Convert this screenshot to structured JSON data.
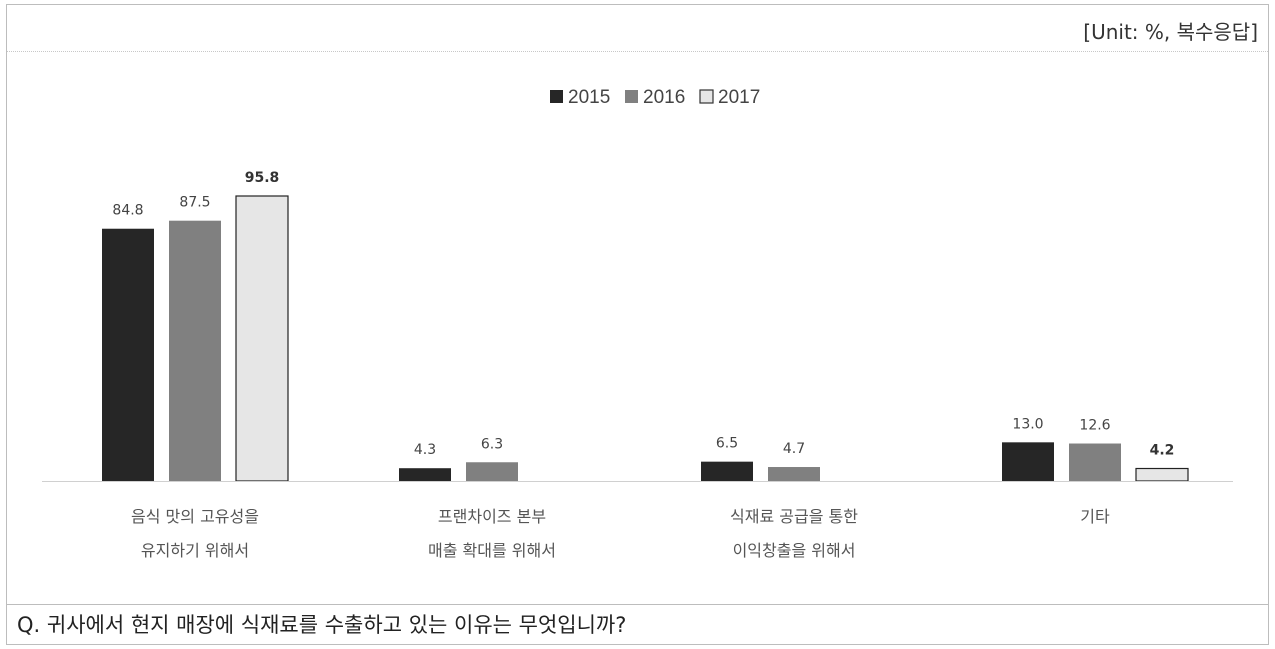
{
  "unit_label": "[Unit:  %,  복수응답]",
  "question": "Q. 귀사에서 현지 매장에 식재료를 수출하고 있는 이유는 무엇입니까?",
  "chart_data": {
    "type": "bar",
    "legend_position": "top-center",
    "grid": false,
    "ylim": [
      0,
      100
    ],
    "categories": [
      [
        "음식 맛의 고유성을",
        "유지하기 위해서"
      ],
      [
        "프랜차이즈 본부",
        "매출 확대를 위해서"
      ],
      [
        "식재료 공급을 통한",
        "이익창출을 위해서"
      ],
      [
        "기타"
      ]
    ],
    "series": [
      {
        "name": "2015",
        "color": "#262626",
        "values": [
          84.8,
          4.3,
          6.5,
          13.0
        ],
        "labels": [
          "84.8",
          "4.3",
          "6.5",
          "13.0"
        ],
        "bold_labels": false
      },
      {
        "name": "2016",
        "color": "#808080",
        "values": [
          87.5,
          6.3,
          4.7,
          12.6
        ],
        "labels": [
          "87.5",
          "6.3",
          "4.7",
          "12.6"
        ],
        "bold_labels": false
      },
      {
        "name": "2017",
        "color": "#e6e6e6",
        "values": [
          95.8,
          null,
          null,
          4.2
        ],
        "labels": [
          "95.8",
          "",
          "",
          "4.2"
        ],
        "bold_labels": true
      }
    ]
  }
}
